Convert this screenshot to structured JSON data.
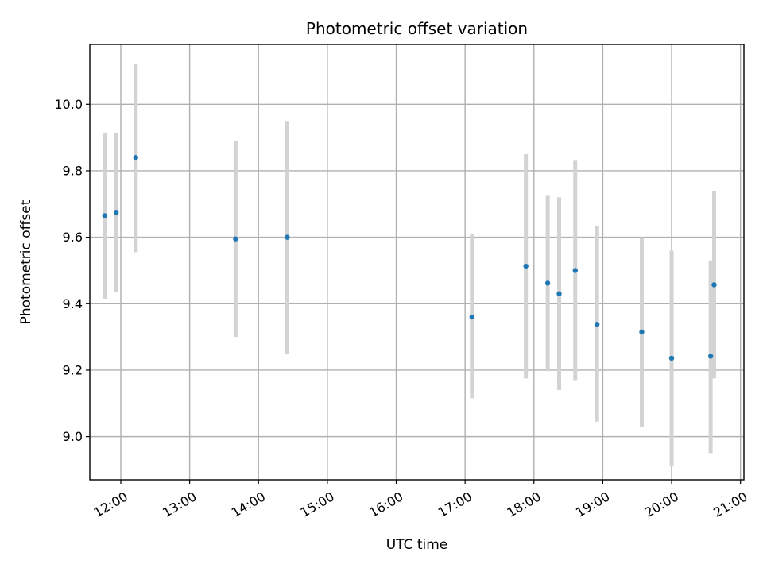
{
  "chart_data": {
    "type": "scatter",
    "title": "Photometric offset variation",
    "xlabel": "UTC time",
    "ylabel": "Photometric offset",
    "x_ticks": [
      "12:00",
      "13:00",
      "14:00",
      "15:00",
      "16:00",
      "17:00",
      "18:00",
      "19:00",
      "20:00",
      "21:00"
    ],
    "y_ticks": [
      "9.0",
      "9.2",
      "9.4",
      "9.6",
      "9.8",
      "10.0"
    ],
    "xlim": [
      "11:33",
      "21:03"
    ],
    "ylim": [
      8.87,
      10.18
    ],
    "grid": true,
    "series": [
      {
        "marker_color": "#1f77b4",
        "errorbar_color": "#d3d3d3",
        "points": [
          {
            "x": "11:46",
            "y": 9.665,
            "ylow": 9.415,
            "yhigh": 9.915
          },
          {
            "x": "11:56",
            "y": 9.675,
            "ylow": 9.435,
            "yhigh": 9.915
          },
          {
            "x": "12:13",
            "y": 9.84,
            "ylow": 9.555,
            "yhigh": 10.12
          },
          {
            "x": "13:40",
            "y": 9.595,
            "ylow": 9.3,
            "yhigh": 9.89
          },
          {
            "x": "14:25",
            "y": 9.6,
            "ylow": 9.25,
            "yhigh": 9.95
          },
          {
            "x": "17:06",
            "y": 9.36,
            "ylow": 9.115,
            "yhigh": 9.61
          },
          {
            "x": "17:53",
            "y": 9.513,
            "ylow": 9.175,
            "yhigh": 9.85
          },
          {
            "x": "18:12",
            "y": 9.462,
            "ylow": 9.2,
            "yhigh": 9.725
          },
          {
            "x": "18:22",
            "y": 9.43,
            "ylow": 9.14,
            "yhigh": 9.72
          },
          {
            "x": "18:36",
            "y": 9.5,
            "ylow": 9.17,
            "yhigh": 9.83
          },
          {
            "x": "18:55",
            "y": 9.338,
            "ylow": 9.045,
            "yhigh": 9.635
          },
          {
            "x": "19:34",
            "y": 9.315,
            "ylow": 9.03,
            "yhigh": 9.6
          },
          {
            "x": "20:00",
            "y": 9.236,
            "ylow": 8.91,
            "yhigh": 9.56
          },
          {
            "x": "20:34",
            "y": 9.242,
            "ylow": 8.95,
            "yhigh": 9.53
          },
          {
            "x": "20:37",
            "y": 9.457,
            "ylow": 9.175,
            "yhigh": 9.74
          }
        ]
      }
    ]
  }
}
